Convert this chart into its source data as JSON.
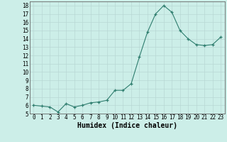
{
  "x": [
    0,
    1,
    2,
    3,
    4,
    5,
    6,
    7,
    8,
    9,
    10,
    11,
    12,
    13,
    14,
    15,
    16,
    17,
    18,
    19,
    20,
    21,
    22,
    23
  ],
  "y": [
    6.0,
    5.9,
    5.8,
    5.2,
    6.2,
    5.8,
    6.0,
    6.3,
    6.4,
    6.6,
    7.8,
    7.8,
    8.6,
    11.8,
    14.8,
    17.0,
    18.0,
    17.2,
    15.0,
    14.0,
    13.3,
    13.2,
    13.3,
    14.2
  ],
  "line_color": "#2e7d6e",
  "marker": "+",
  "marker_color": "#2e7d6e",
  "bg_color": "#cceee8",
  "grid_color": "#b8d8d4",
  "xlabel": "Humidex (Indice chaleur)",
  "xlim": [
    -0.5,
    23.5
  ],
  "ylim": [
    5,
    18.5
  ],
  "yticks": [
    5,
    6,
    7,
    8,
    9,
    10,
    11,
    12,
    13,
    14,
    15,
    16,
    17,
    18
  ],
  "xticks": [
    0,
    1,
    2,
    3,
    4,
    5,
    6,
    7,
    8,
    9,
    10,
    11,
    12,
    13,
    14,
    15,
    16,
    17,
    18,
    19,
    20,
    21,
    22,
    23
  ],
  "axis_fontsize": 6.5,
  "tick_fontsize": 5.5,
  "xlabel_fontsize": 7.0
}
